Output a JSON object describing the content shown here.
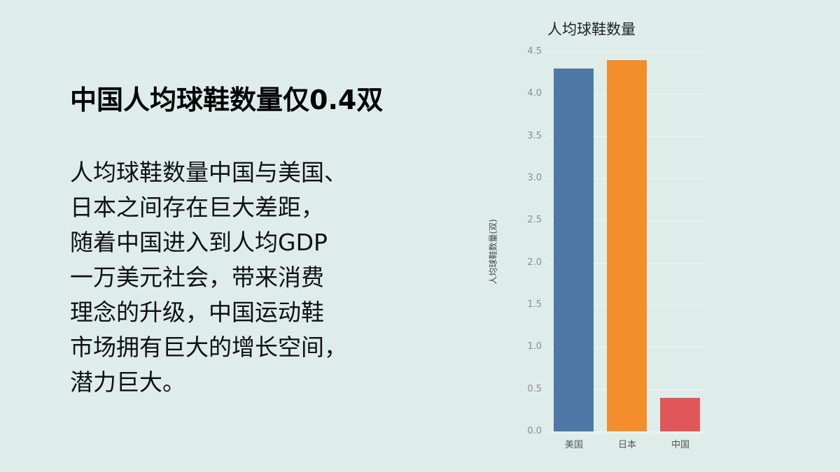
{
  "slide": {
    "headline": "中国人均球鞋数量仅0.4双",
    "body_lines": [
      "人均球鞋数量中国与美国、",
      "日本之间存在巨大差距，",
      "随着中国进入到人均GDP",
      "一万美元社会，带来消费",
      "理念的升级，中国运动鞋",
      "市场拥有巨大的增长空间，",
      "潜力巨大。"
    ]
  },
  "chart_data": {
    "type": "bar",
    "title": "人均球鞋数量",
    "xlabel": "",
    "ylabel": "人均球鞋数量(双)",
    "categories": [
      "美国",
      "日本",
      "中国"
    ],
    "values": [
      4.3,
      4.4,
      0.4
    ],
    "colors": [
      "#4e79a7",
      "#f28e2b",
      "#e15759"
    ],
    "ylim": [
      0,
      4.5
    ],
    "yticks": [
      "0.0",
      "0.5",
      "1.0",
      "1.5",
      "2.0",
      "2.5",
      "3.0",
      "3.5",
      "4.0",
      "4.5"
    ],
    "grid": true,
    "legend": null
  }
}
